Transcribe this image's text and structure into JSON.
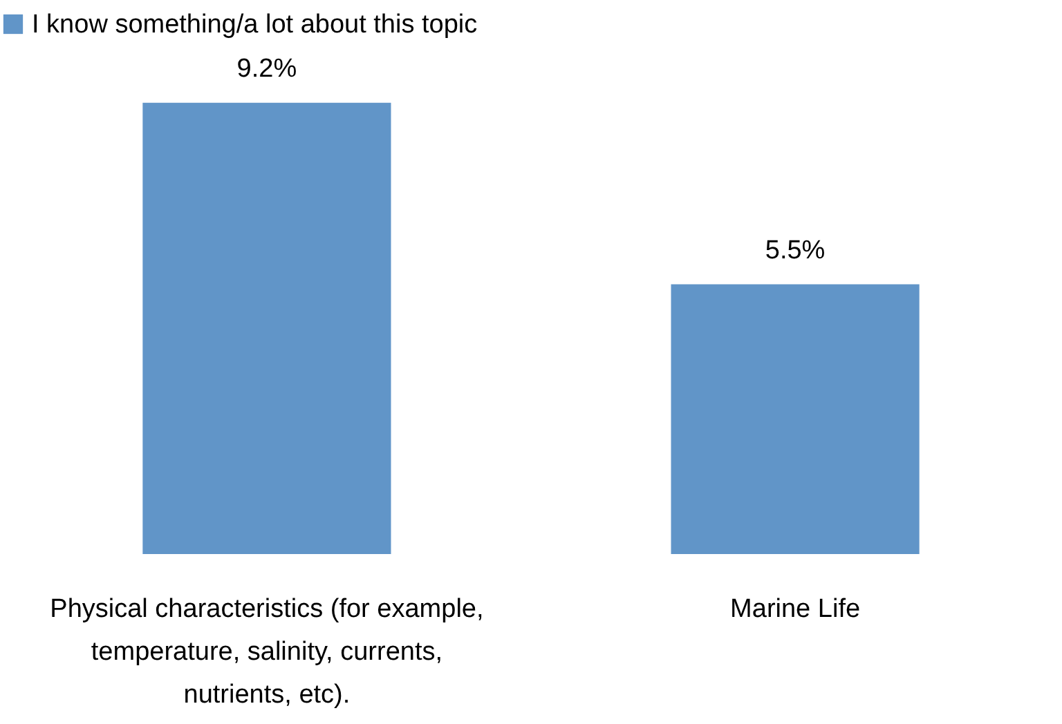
{
  "chart_data": {
    "type": "bar",
    "categories": [
      "Physical characteristics (for example, temperature, salinity, currents, nutrients, etc).",
      "Marine Life"
    ],
    "series": [
      {
        "name": "I know something/a lot about this topic",
        "color": "#6195c8",
        "values": [
          9.2,
          5.5
        ],
        "value_labels": [
          "9.2%",
          "5.5%"
        ]
      }
    ],
    "legend": "top",
    "grid": false
  }
}
